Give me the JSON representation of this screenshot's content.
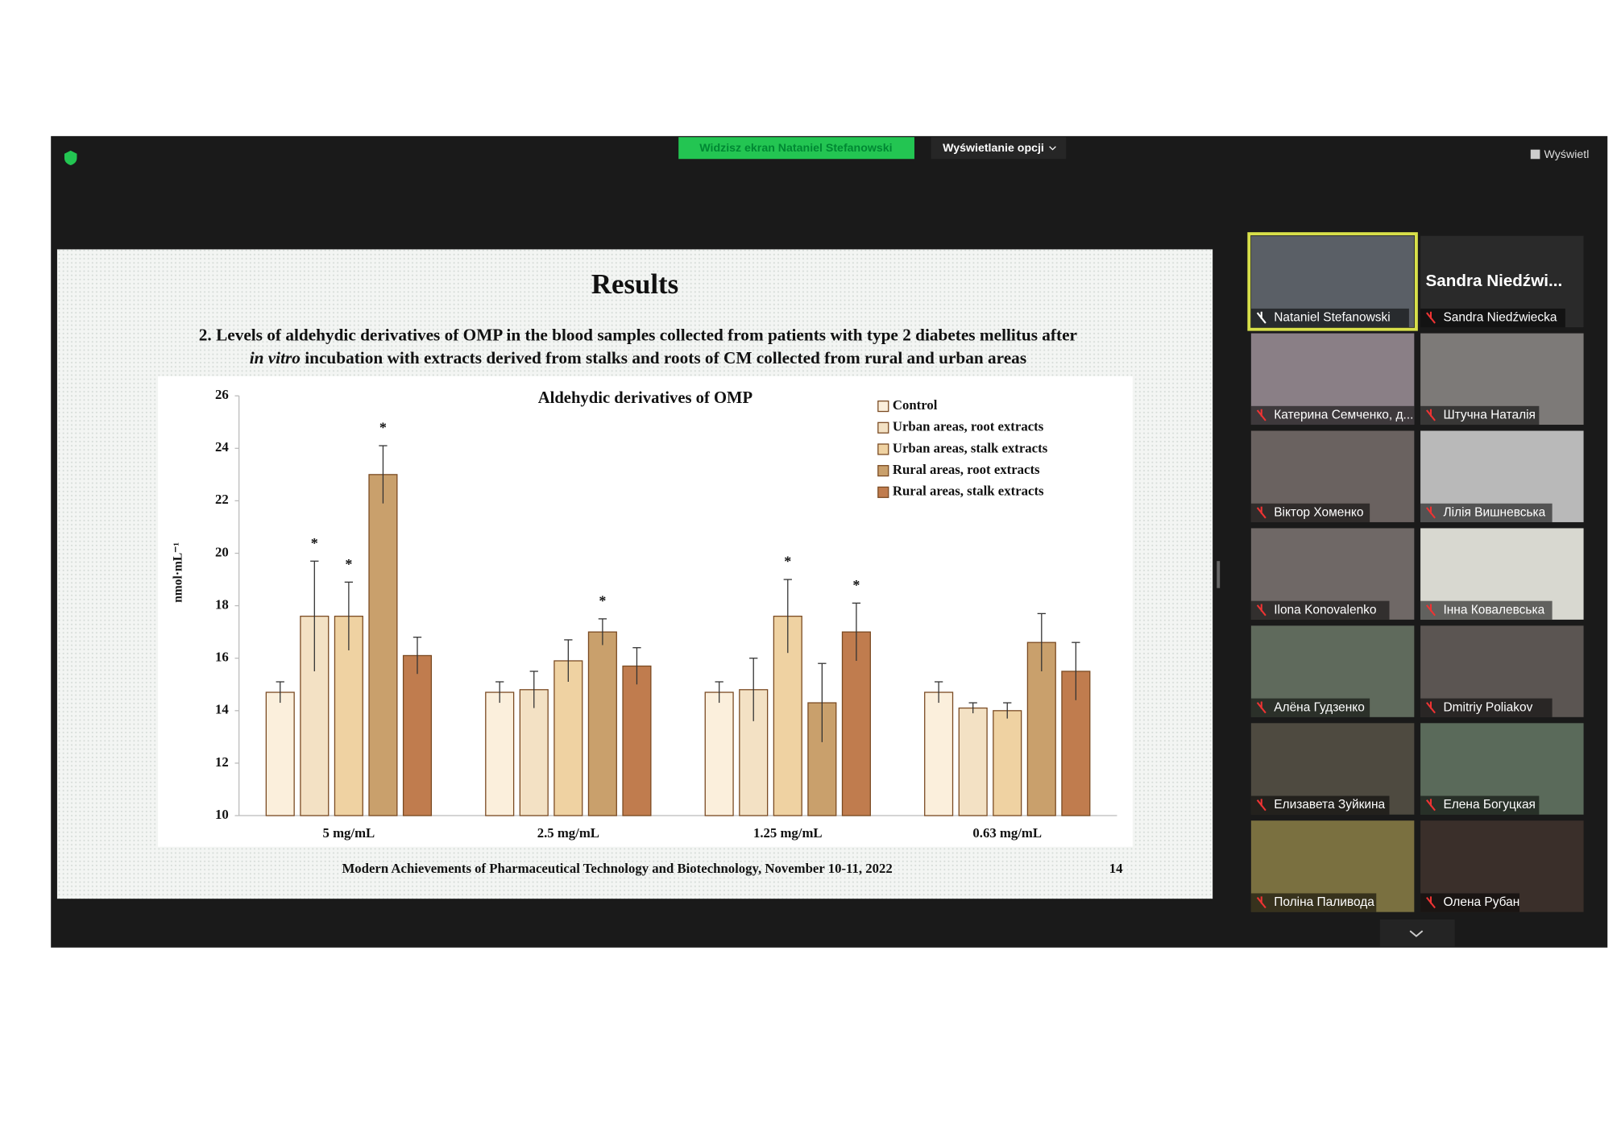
{
  "toolbar": {
    "share_banner": "Widzisz ekran Nataniel Stefanowski",
    "view_options": "Wyświetlanie opcji",
    "view": "Wyświetl"
  },
  "slide": {
    "title": "Results",
    "subtitle_line1": "2. Levels of aldehydic derivatives of OMP in the blood samples collected from patients with type 2 diabetes mellitus after",
    "subtitle_italic": "in vitro",
    "subtitle_line2": " incubation with extracts derived from stalks and roots of CM collected from rural and urban areas",
    "footer": "Modern Achievements of Pharmaceutical Technology and Biotechnology, November 10-11, 2022",
    "page_number": "14"
  },
  "chart_data": {
    "type": "bar",
    "title": "Aldehydic derivatives of OMP",
    "y_label": "nmol·mL⁻¹",
    "categories": [
      "5 mg/mL",
      "2.5 mg/mL",
      "1.25 mg/mL",
      "0.63 mg/mL"
    ],
    "series": [
      {
        "name": "Control",
        "color": "#fbefdc",
        "values": [
          14.7,
          14.7,
          14.7,
          14.7
        ],
        "errors": [
          0.4,
          0.4,
          0.4,
          0.4
        ],
        "significance": [
          null,
          null,
          null,
          null
        ]
      },
      {
        "name": "Urban areas, root extracts",
        "color": "#f3e1c4",
        "values": [
          17.6,
          14.8,
          14.8,
          14.1
        ],
        "errors": [
          2.1,
          0.7,
          1.2,
          0.2
        ],
        "significance": [
          "*",
          null,
          null,
          null
        ]
      },
      {
        "name": "Urban areas, stalk extracts",
        "color": "#efd2a2",
        "values": [
          17.6,
          15.9,
          17.6,
          14.0
        ],
        "errors": [
          1.3,
          0.8,
          1.4,
          0.3
        ],
        "significance": [
          "*",
          null,
          "*",
          null
        ]
      },
      {
        "name": "Rural areas, root extracts",
        "color": "#c9a06c",
        "values": [
          23.0,
          17.0,
          14.3,
          16.6
        ],
        "errors": [
          1.1,
          0.5,
          1.5,
          1.1
        ],
        "significance": [
          "*",
          "*",
          null,
          null
        ]
      },
      {
        "name": "Rural areas, stalk extracts",
        "color": "#c07c4e",
        "values": [
          16.1,
          15.7,
          17.0,
          15.5
        ],
        "errors": [
          0.7,
          0.7,
          1.1,
          1.1
        ],
        "significance": [
          null,
          null,
          "*",
          null
        ]
      }
    ],
    "ylim": [
      10,
      26
    ],
    "yticks": [
      10,
      12,
      14,
      16,
      18,
      20,
      22,
      24,
      26
    ],
    "grid": false,
    "legend": "upper right"
  },
  "participants": {
    "featured_name": "Sandra Niedźwi...",
    "tiles": [
      "Nataniel Stefanowski",
      "Sandra Niedźwiecka",
      "Катерина Семченко, д...",
      "Штучна Наталія",
      "Віктор Хоменко",
      "Лілія Вишневська",
      "Ilona Konovalenko",
      "Інна Ковалевська",
      "Алёна Гудзенко",
      "Dmitriy Poliakov",
      "Елизавета Зуйкина",
      "Елена Богуцкая",
      "Поліна Паливода",
      "Олена Рубан"
    ]
  }
}
